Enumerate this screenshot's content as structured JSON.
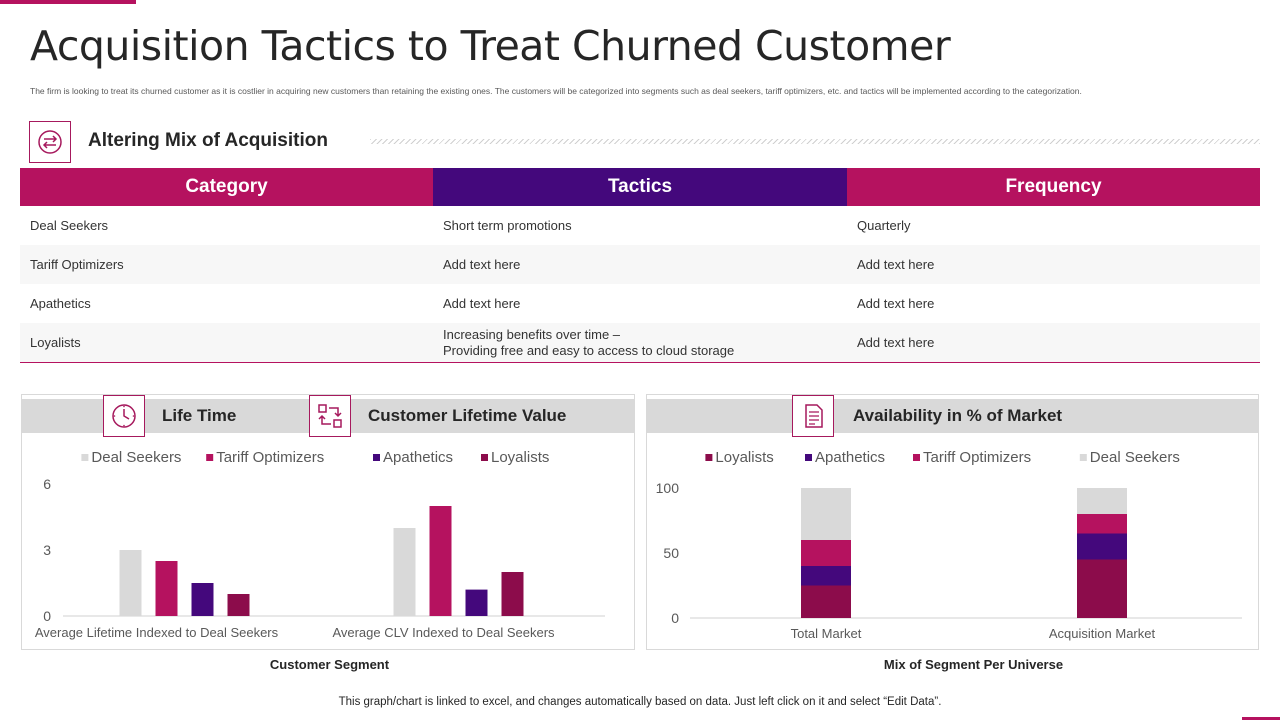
{
  "page": {
    "title": "Acquisition Tactics to Treat Churned Customer",
    "subtitle": "The  firm is looking to treat its churned  customer as it is costlier in acquiring new  customers than retaining the existing ones.  The  customers will be categorized  into segments such as deal seekers,  tariff optimizers, etc. and tactics will be implemented according to the categorization.",
    "section_heading": "Altering Mix of Acquisition",
    "footer_note": "This graph/chart is linked to excel,  and changes automatically based on data. Just left click on it and select “Edit Data”."
  },
  "table": {
    "headers": [
      "Category",
      "Tactics",
      "Frequency"
    ],
    "header_colors": [
      "#b5125f",
      "#44087c",
      "#b5125f"
    ],
    "rows": [
      [
        "Deal Seekers",
        "Short term promotions",
        "Quarterly"
      ],
      [
        "Tariff  Optimizers",
        "Add text here",
        "Add text here"
      ],
      [
        "Apathetics",
        "Add text here",
        "Add text here"
      ],
      [
        "Loyalists",
        "Increasing  benefits  over  time –\nProviding  free  and  easy to access to cloud storage",
        "Add text here"
      ]
    ]
  },
  "left_panel": {
    "label_1": "Life Time",
    "label_2": "Customer Lifetime Value",
    "caption": "Customer Segment"
  },
  "right_panel": {
    "label": "Availability in % of Market",
    "caption": "Mix of Segment Per Universe"
  },
  "icons": {
    "section": "arrows-exchange-icon",
    "life_time": "clock-icon",
    "clv": "process-flow-icon",
    "availability": "document-icon"
  },
  "colors": {
    "accent": "#b5125f",
    "purple": "#44087c",
    "deal_seekers": "#d9d9d9",
    "tariff_optimizers": "#b5125f",
    "apathetics": "#44087c",
    "loyalists": "#8c0c4b"
  },
  "chart_data": [
    {
      "type": "bar",
      "title": "",
      "xlabel": "Customer Segment",
      "ylabel": "",
      "categories": [
        "Average Lifetime Indexed to Deal Seekers",
        "Average CLV Indexed to Deal Seekers"
      ],
      "series": [
        {
          "name": "Deal Seekers",
          "values": [
            3,
            4
          ],
          "color": "#d9d9d9"
        },
        {
          "name": "Tariff Optimizers",
          "values": [
            2.5,
            5
          ],
          "color": "#b5125f"
        },
        {
          "name": "Apathetics",
          "values": [
            1.5,
            1.2
          ],
          "color": "#44087c"
        },
        {
          "name": "Loyalists",
          "values": [
            1,
            2
          ],
          "color": "#8c0c4b"
        }
      ],
      "ylim": [
        0,
        6
      ],
      "yticks": [
        0,
        3,
        6
      ],
      "legend": "top",
      "grid": false
    },
    {
      "type": "bar",
      "stacked": true,
      "title": "",
      "xlabel": "Mix of Segment Per Universe",
      "ylabel": "",
      "categories": [
        "Total Market",
        "Acquisition Market"
      ],
      "series": [
        {
          "name": "Loyalists",
          "values": [
            25,
            45
          ],
          "color": "#8c0c4b"
        },
        {
          "name": "Apathetics",
          "values": [
            15,
            20
          ],
          "color": "#44087c"
        },
        {
          "name": "Tariff Optimizers",
          "values": [
            20,
            15
          ],
          "color": "#b5125f"
        },
        {
          "name": "Deal Seekers",
          "values": [
            40,
            20
          ],
          "color": "#d9d9d9"
        }
      ],
      "ylim": [
        0,
        100
      ],
      "yticks": [
        0,
        50,
        100
      ],
      "legend": "top",
      "grid": false
    }
  ]
}
